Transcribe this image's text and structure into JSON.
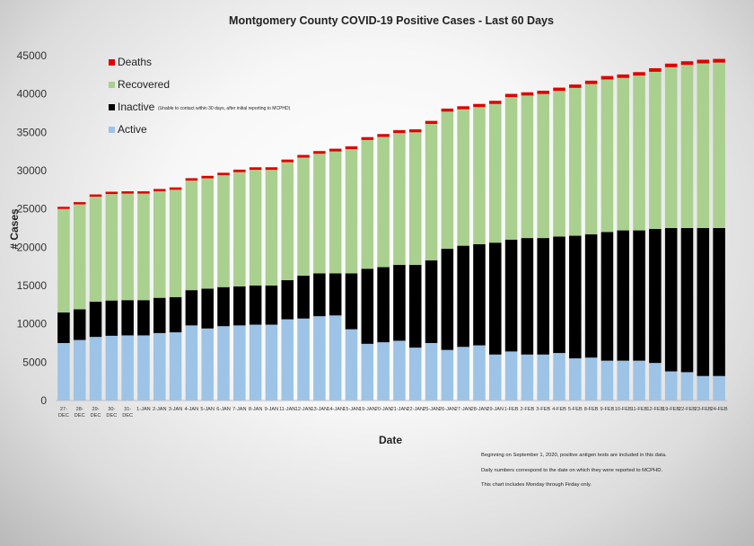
{
  "chart_data": {
    "type": "bar",
    "stacked": true,
    "title": "Montgomery County COVID-19 Positive Cases  - Last 60 Days",
    "xlabel": "Date",
    "ylabel": "# Cases",
    "ylim": [
      0,
      45000
    ],
    "yticks": [
      "0",
      "5000",
      "10000",
      "15000",
      "20000",
      "25000",
      "30000",
      "35000",
      "40000",
      "45000"
    ],
    "grid": false,
    "legend_position": "top-left",
    "categories": [
      "27-DEC",
      "28-DEC",
      "29-DEC",
      "30-DEC",
      "31-DEC",
      "1-JAN",
      "2-JAN",
      "3-JAN",
      "4-JAN",
      "5-JAN",
      "6-JAN",
      "7-JAN",
      "8-JAN",
      "9-JAN",
      "11-JAN",
      "12-JAN",
      "13-JAN",
      "14-JAN",
      "15-JAN",
      "19-JAN",
      "20-JAN",
      "21-JAN",
      "22-JAN",
      "25-JAN",
      "26-JAN",
      "27-JAN",
      "28-JAN",
      "29-JAN",
      "1-FEB",
      "2-FEB",
      "3-FEB",
      "4-FEB",
      "5-FEB",
      "8-FEB",
      "9-FEB",
      "10-FEB",
      "11-FEB",
      "12-FEB",
      "19-FEB",
      "22-FEB",
      "23-FEB",
      "24-FEB"
    ],
    "series": [
      {
        "name": "Active",
        "color": "#9dc3e6",
        "values": [
          7500,
          7900,
          8300,
          8450,
          8500,
          8500,
          8800,
          8900,
          9800,
          9400,
          9700,
          9800,
          9900,
          9900,
          10600,
          10700,
          11000,
          11100,
          9300,
          7400,
          7600,
          7800,
          6900,
          7500,
          6600,
          7000,
          7200,
          6000,
          6400,
          6000,
          6000,
          6200,
          5500,
          5600,
          5200,
          5200,
          5200,
          4900,
          3800,
          3700,
          3200,
          3200
        ]
      },
      {
        "name": "Inactive",
        "color": "#000000",
        "values": [
          4000,
          4000,
          4600,
          4600,
          4600,
          4600,
          4600,
          4600,
          4600,
          5200,
          5100,
          5100,
          5100,
          5100,
          5100,
          5600,
          5600,
          5500,
          7300,
          9800,
          9800,
          9900,
          10800,
          10800,
          13200,
          13200,
          13200,
          14600,
          14600,
          15200,
          15200,
          15200,
          16000,
          16100,
          16800,
          17000,
          17000,
          17500,
          18700,
          18800,
          19300,
          19300
        ]
      },
      {
        "name": "Recovered",
        "color": "#a9d08e",
        "values": [
          13500,
          13700,
          13700,
          13900,
          13900,
          13900,
          13900,
          14000,
          14300,
          14400,
          14600,
          14900,
          15100,
          15100,
          15400,
          15400,
          15600,
          15900,
          16200,
          16800,
          17000,
          17200,
          17300,
          17800,
          17900,
          17800,
          17900,
          18100,
          18600,
          18600,
          18800,
          19000,
          19300,
          19600,
          19900,
          19900,
          20200,
          20500,
          21000,
          21300,
          21500,
          21600
        ]
      },
      {
        "name": "Deaths",
        "color": "#e00000",
        "values": [
          280,
          285,
          290,
          295,
          300,
          300,
          305,
          310,
          315,
          320,
          325,
          330,
          335,
          340,
          345,
          350,
          355,
          360,
          365,
          370,
          375,
          380,
          385,
          390,
          395,
          400,
          405,
          410,
          415,
          420,
          425,
          430,
          435,
          440,
          445,
          450,
          455,
          460,
          465,
          470,
          475,
          480
        ]
      }
    ],
    "legend": [
      {
        "label": "Deaths",
        "color": "#e00000"
      },
      {
        "label": "Recovered",
        "color": "#a9d08e"
      },
      {
        "label": "Inactive",
        "note": "(Unable to contact within 30 days, after initial reporting to MCPHD)",
        "color": "#000000"
      },
      {
        "label": "Active",
        "color": "#9dc3e6"
      }
    ],
    "notes": [
      "Beginning on September 1, 2020, positive antigen tests are included in this data.",
      "Daily numbers correspond to the date on which they were reported to MCPHD.",
      "This chart includes Monday through Firday only."
    ]
  }
}
